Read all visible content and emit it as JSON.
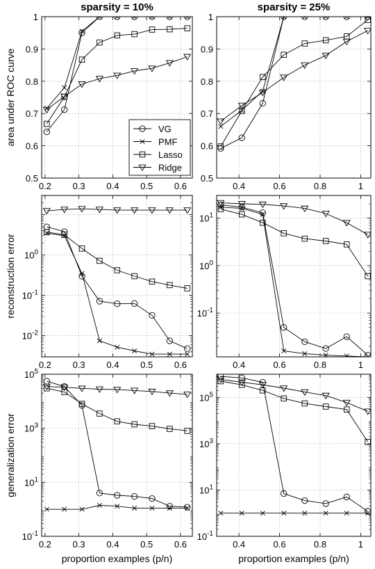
{
  "chart_data": [
    {
      "type": "line",
      "title": "sparsity = 10%",
      "xlabel": "",
      "ylabel": "area under ROC curve",
      "xlim": [
        0.19,
        0.635
      ],
      "ylim": [
        0.5,
        1.0
      ],
      "yscale": "linear",
      "xticks": [
        0.2,
        0.3,
        0.4,
        0.5,
        0.6
      ],
      "xtick_labels": [
        "0.2",
        "0.3",
        "0.4",
        "0.5",
        "0.6"
      ],
      "yticks": [
        0.5,
        0.6,
        0.7,
        0.8,
        0.9,
        1.0
      ],
      "ytick_labels": [
        "0.5",
        "0.6",
        "0.7",
        "0.8",
        "0.9",
        "1"
      ],
      "grid": true,
      "legend_position": "lower-right",
      "x": [
        0.205,
        0.257,
        0.309,
        0.361,
        0.413,
        0.464,
        0.516,
        0.568,
        0.62
      ],
      "series": [
        {
          "name": "VG",
          "marker": "circle",
          "values": [
            0.643,
            0.712,
            0.95,
            1.0,
            1.0,
            1.0,
            1.0,
            1.0,
            1.0
          ]
        },
        {
          "name": "PMF",
          "marker": "x",
          "values": [
            0.716,
            0.78,
            0.955,
            1.0,
            1.0,
            1.0,
            1.0,
            1.0,
            1.0
          ]
        },
        {
          "name": "Lasso",
          "marker": "square",
          "values": [
            0.668,
            0.752,
            0.867,
            0.92,
            0.942,
            0.946,
            0.96,
            0.961,
            0.964
          ]
        },
        {
          "name": "Ridge",
          "marker": "triangle-down",
          "values": [
            0.712,
            0.753,
            0.791,
            0.808,
            0.818,
            0.832,
            0.84,
            0.857,
            0.876
          ]
        }
      ]
    },
    {
      "type": "line",
      "title": "sparsity = 25%",
      "xlabel": "",
      "ylabel": "",
      "xlim": [
        0.29,
        1.05
      ],
      "ylim": [
        0.5,
        1.0
      ],
      "yscale": "linear",
      "xticks": [
        0.4,
        0.6,
        0.8,
        1.0
      ],
      "xtick_labels": [
        "0.4",
        "0.6",
        "0.8",
        "1"
      ],
      "yticks": [
        0.5,
        0.6,
        0.7,
        0.8,
        0.9,
        1.0
      ],
      "ytick_labels": [
        "0.5",
        "0.6",
        "0.7",
        "0.8",
        "0.9",
        "1"
      ],
      "grid": true,
      "x": [
        0.31,
        0.414,
        0.517,
        0.621,
        0.724,
        0.828,
        0.931,
        1.035
      ],
      "series": [
        {
          "name": "VG",
          "marker": "circle",
          "values": [
            0.592,
            0.625,
            0.732,
            1.0,
            1.0,
            1.0,
            1.0,
            1.0
          ]
        },
        {
          "name": "PMF",
          "marker": "x",
          "values": [
            0.66,
            0.71,
            0.77,
            1.0,
            1.0,
            1.0,
            1.0,
            1.0
          ]
        },
        {
          "name": "Lasso",
          "marker": "square",
          "values": [
            0.598,
            0.708,
            0.813,
            0.882,
            0.917,
            0.927,
            0.939,
            0.99
          ]
        },
        {
          "name": "Ridge",
          "marker": "triangle-down",
          "values": [
            0.676,
            0.725,
            0.765,
            0.812,
            0.85,
            0.88,
            0.923,
            0.957
          ]
        }
      ]
    },
    {
      "type": "line",
      "title": "",
      "xlabel": "",
      "ylabel": "reconstruction error",
      "xlim": [
        0.19,
        0.635
      ],
      "ylim": [
        0.003,
        30
      ],
      "yscale": "log",
      "xticks": [
        0.2,
        0.3,
        0.4,
        0.5,
        0.6
      ],
      "xtick_labels": [
        "0.2",
        "0.3",
        "0.4",
        "0.5",
        "0.6"
      ],
      "yticks": [
        0.01,
        0.1,
        1,
        10
      ],
      "ytick_labels": [
        "10^-2",
        "10^-1",
        "10^0",
        ""
      ],
      "grid": true,
      "x": [
        0.205,
        0.257,
        0.309,
        0.361,
        0.413,
        0.464,
        0.516,
        0.568,
        0.62
      ],
      "series": [
        {
          "name": "VG",
          "marker": "circle",
          "values": [
            5.0,
            3.8,
            0.3,
            0.072,
            0.062,
            0.063,
            0.032,
            0.0075,
            0.0048
          ]
        },
        {
          "name": "PMF",
          "marker": "x",
          "values": [
            3.5,
            3.0,
            0.35,
            0.0075,
            0.0052,
            0.0042,
            0.0035,
            0.0035,
            0.0035
          ]
        },
        {
          "name": "Lasso",
          "marker": "square",
          "values": [
            3.7,
            3.2,
            1.45,
            0.72,
            0.42,
            0.3,
            0.22,
            0.18,
            0.15
          ]
        },
        {
          "name": "Ridge",
          "marker": "triangle-down",
          "values": [
            12.5,
            13.5,
            14.0,
            13.5,
            13.0,
            13.0,
            13.0,
            13.0,
            13.0
          ]
        }
      ]
    },
    {
      "type": "line",
      "title": "",
      "xlabel": "",
      "ylabel": "",
      "xlim": [
        0.29,
        1.05
      ],
      "ylim": [
        0.012,
        30
      ],
      "yscale": "log",
      "xticks": [
        0.4,
        0.6,
        0.8,
        1.0
      ],
      "xtick_labels": [
        "0.4",
        "0.6",
        "0.8",
        "1"
      ],
      "yticks": [
        0.1,
        1,
        10
      ],
      "ytick_labels": [
        "10^-1",
        "10^0",
        "10^1"
      ],
      "grid": true,
      "x": [
        0.31,
        0.414,
        0.517,
        0.621,
        0.724,
        0.828,
        0.931,
        1.035
      ],
      "series": [
        {
          "name": "VG",
          "marker": "circle",
          "values": [
            19.0,
            17.0,
            13.0,
            0.05,
            0.025,
            0.018,
            0.032,
            0.013
          ]
        },
        {
          "name": "PMF",
          "marker": "x",
          "values": [
            17.0,
            16.0,
            12.0,
            0.016,
            0.014,
            0.013,
            0.0125,
            0.012
          ]
        },
        {
          "name": "Lasso",
          "marker": "square",
          "values": [
            15.5,
            12.0,
            8.0,
            4.8,
            3.7,
            3.3,
            2.8,
            0.6
          ]
        },
        {
          "name": "Ridge",
          "marker": "triangle-down",
          "values": [
            21.0,
            20.0,
            19.5,
            18.0,
            16.0,
            12.5,
            8.0,
            4.5
          ]
        }
      ]
    },
    {
      "type": "line",
      "title": "",
      "xlabel": "proportion examples (p/n)",
      "ylabel": "generalization error",
      "xlim": [
        0.19,
        0.635
      ],
      "ylim": [
        0.1,
        100000
      ],
      "yscale": "log",
      "xticks": [
        0.2,
        0.3,
        0.4,
        0.5,
        0.6
      ],
      "xtick_labels": [
        "0.2",
        "0.3",
        "0.4",
        "0.5",
        "0.6"
      ],
      "yticks": [
        0.1,
        10,
        1000,
        100000
      ],
      "ytick_labels": [
        "10^-1",
        "10^1",
        "10^3",
        "10^5"
      ],
      "grid": true,
      "x": [
        0.205,
        0.257,
        0.309,
        0.361,
        0.413,
        0.464,
        0.516,
        0.568,
        0.62
      ],
      "series": [
        {
          "name": "VG",
          "marker": "circle",
          "values": [
            55000,
            35000,
            7000,
            4.0,
            3.3,
            3.0,
            2.5,
            1.3,
            1.2
          ]
        },
        {
          "name": "PMF",
          "marker": "x",
          "values": [
            1.0,
            1.0,
            1.0,
            1.4,
            1.3,
            1.1,
            1.1,
            1.1,
            1.1
          ]
        },
        {
          "name": "Lasso",
          "marker": "square",
          "values": [
            30000,
            22000,
            8000,
            3500,
            1800,
            1400,
            1200,
            950,
            800
          ]
        },
        {
          "name": "Ridge",
          "marker": "triangle-down",
          "values": [
            35000,
            33000,
            30000,
            28000,
            27000,
            25000,
            23000,
            20000,
            18000
          ]
        }
      ]
    },
    {
      "type": "line",
      "title": "",
      "xlabel": "proportion examples (p/n)",
      "ylabel": "",
      "xlim": [
        0.29,
        1.05
      ],
      "ylim": [
        0.1,
        1000000
      ],
      "yscale": "log",
      "xticks": [
        0.4,
        0.6,
        0.8,
        1.0
      ],
      "xtick_labels": [
        "0.4",
        "0.6",
        "0.8",
        "1"
      ],
      "yticks": [
        0.1,
        10,
        1000,
        100000
      ],
      "ytick_labels": [
        "10^-1",
        "10^1",
        "10^3",
        "10^5"
      ],
      "grid": true,
      "x": [
        0.31,
        0.414,
        0.517,
        0.621,
        0.724,
        0.828,
        0.931,
        1.035
      ],
      "series": [
        {
          "name": "VG",
          "marker": "circle",
          "values": [
            800000,
            700000,
            450000,
            7.0,
            3.5,
            2.6,
            5.0,
            1.2
          ]
        },
        {
          "name": "PMF",
          "marker": "x",
          "values": [
            1.0,
            1.0,
            1.0,
            1.0,
            1.0,
            1.0,
            1.0,
            1.0
          ]
        },
        {
          "name": "Lasso",
          "marker": "square",
          "values": [
            500000,
            350000,
            200000,
            90000,
            55000,
            40000,
            30000,
            1200
          ]
        },
        {
          "name": "Ridge",
          "marker": "triangle-down",
          "values": [
            600000,
            450000,
            350000,
            250000,
            170000,
            120000,
            60000,
            25000
          ]
        }
      ]
    }
  ]
}
